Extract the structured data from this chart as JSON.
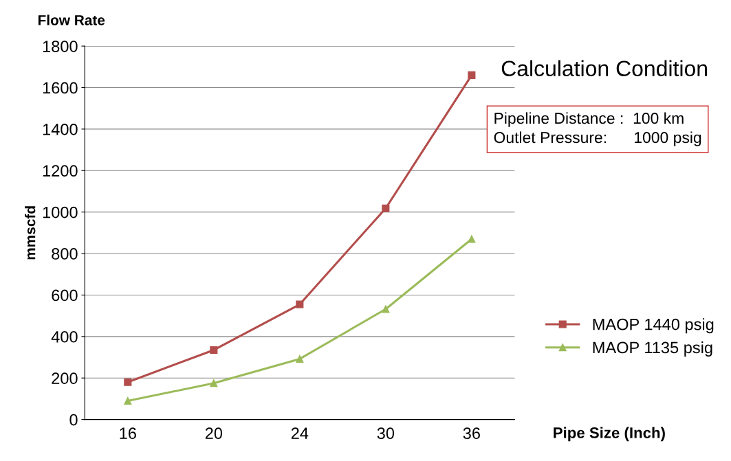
{
  "chart_data": {
    "type": "line",
    "title": "Flow Rate",
    "xlabel": "Pipe Size (Inch)",
    "ylabel": "mmscfd",
    "categories": [
      "16",
      "20",
      "24",
      "30",
      "36"
    ],
    "series": [
      {
        "name": "MAOP 1440 psig",
        "color": "#b34d4b",
        "values": [
          180,
          335,
          555,
          1018,
          1660
        ],
        "marker": "square"
      },
      {
        "name": "MAOP 1135 psig",
        "color": "#9bbb59",
        "values": [
          90,
          175,
          292,
          532,
          870
        ],
        "marker": "triangle"
      }
    ],
    "ylim": [
      0,
      1800
    ],
    "yticks": [
      0,
      200,
      400,
      600,
      800,
      1000,
      1200,
      1400,
      1600,
      1800
    ],
    "grid": "y",
    "legend": "right",
    "line_style": "solid",
    "annotations": [
      "Calculation Condition",
      "Pipeline Distance :  100 km\nOutlet Pressure:      1000 psig"
    ]
  }
}
